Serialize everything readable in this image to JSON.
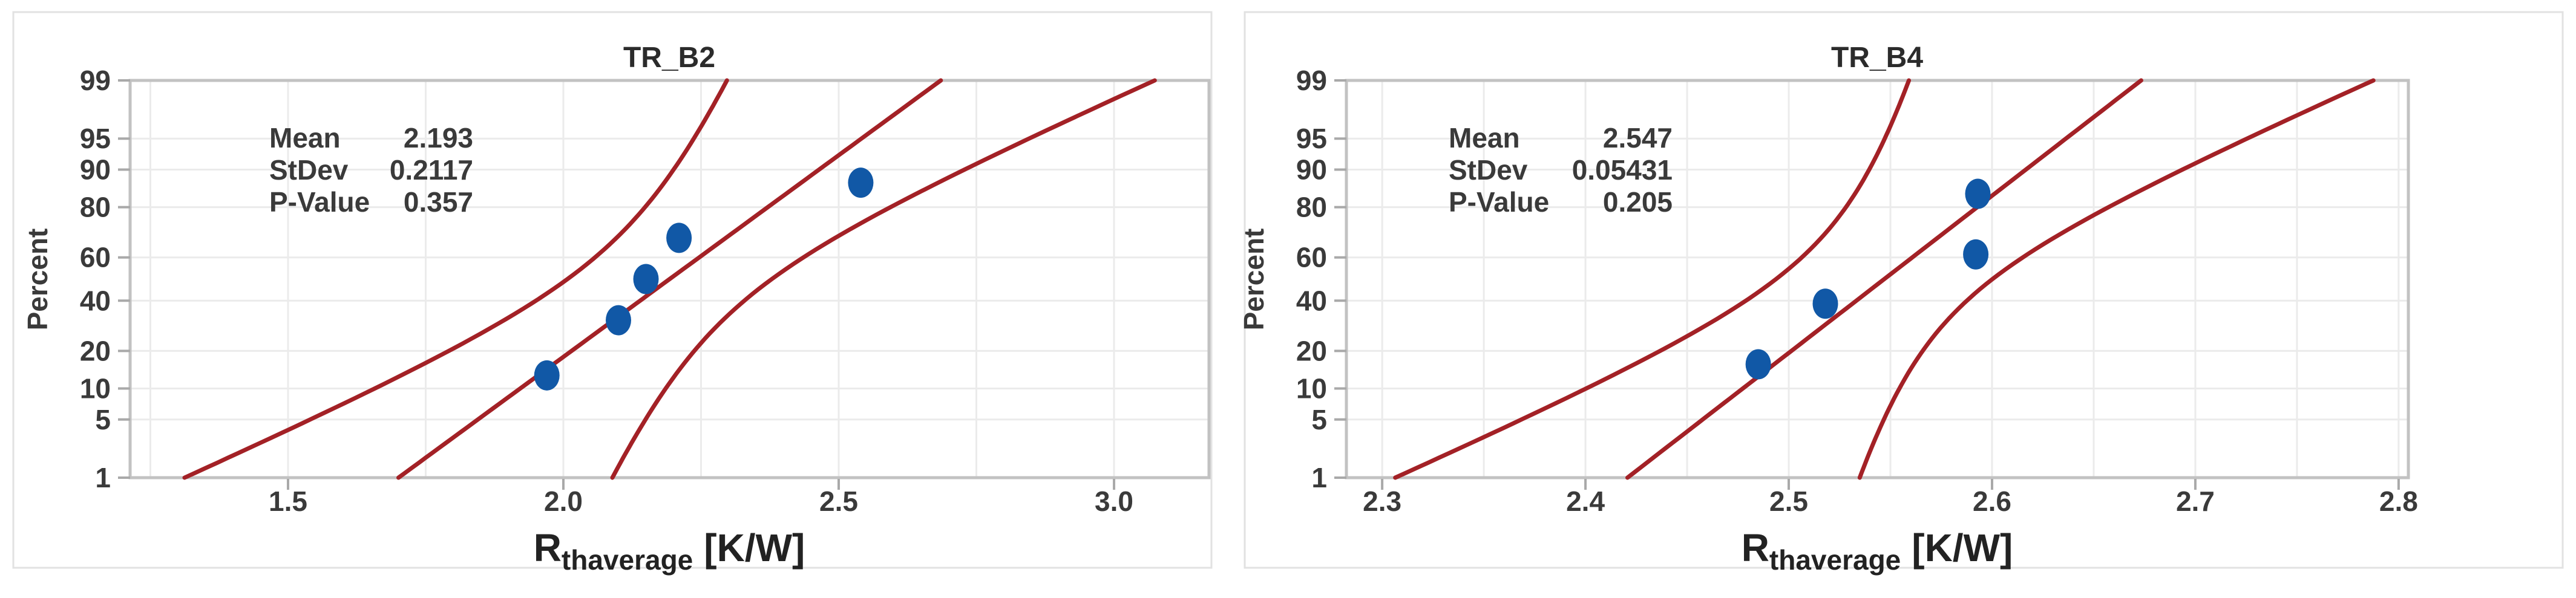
{
  "page": {
    "background": "#FFFFFF"
  },
  "colors": {
    "line_red": "#A32126",
    "point_blue": "#1158A6",
    "grid": "#EBEBEB",
    "frame": "#C2C2C2",
    "tick": "#A9A9A9",
    "text": "#3A3A3A",
    "title": "#2B2B2B",
    "card_border": "#E2E2E2",
    "background": "#FFFFFF"
  },
  "chart_data": [
    {
      "type": "scatter",
      "subtype": "normal_probability_plot",
      "title": "TR_B2",
      "ylabel": "Percent",
      "xlabel": "Rthaverage [K/W]",
      "xlabel_parts": {
        "base": "R",
        "sub": "thaverage",
        "unit": "[K/W]"
      },
      "stats": [
        [
          "Mean",
          "2.193"
        ],
        [
          "StDev",
          "0.2117"
        ],
        [
          "P-Value",
          "0.357"
        ]
      ],
      "points": {
        "x": [
          1.97,
          2.1,
          2.15,
          2.21,
          2.54
        ],
        "percent": [
          12.96,
          31.48,
          50.0,
          68.52,
          87.04
        ]
      },
      "fit": {
        "mean": 2.193,
        "stdev": 0.2117,
        "n": 5,
        "conf_level": 0.95
      },
      "x_ticks": [
        "1.5",
        "2.0",
        "2.5",
        "3.0"
      ],
      "x_tick_values": [
        1.5,
        2.0,
        2.5,
        3.0
      ],
      "x_minor_step": 0.25,
      "xlim": [
        1.2132,
        3.1725
      ],
      "y_ticks": [
        99,
        95,
        90,
        80,
        60,
        40,
        20,
        10,
        5,
        1
      ],
      "ylim": [
        1,
        99
      ],
      "grid": true,
      "legend": false
    },
    {
      "type": "scatter",
      "subtype": "normal_probability_plot",
      "title": "TR_B4",
      "ylabel": "Percent",
      "xlabel": "Rthaverage [K/W]",
      "xlabel_parts": {
        "base": "R",
        "sub": "thaverage",
        "unit": "[K/W]"
      },
      "stats": [
        [
          "Mean",
          "2.547"
        ],
        [
          "StDev",
          "0.05431"
        ],
        [
          "P-Value",
          "0.205"
        ]
      ],
      "points": {
        "x": [
          2.485,
          2.518,
          2.592,
          2.593
        ],
        "percent": [
          15.91,
          38.64,
          61.36,
          84.09
        ]
      },
      "fit": {
        "mean": 2.547,
        "stdev": 0.05431,
        "n": 4,
        "conf_level": 0.95
      },
      "x_ticks": [
        "2.3",
        "2.4",
        "2.5",
        "2.6",
        "2.7",
        "2.8"
      ],
      "x_tick_values": [
        2.3,
        2.4,
        2.5,
        2.6,
        2.7,
        2.8
      ],
      "x_minor_step": 0.05,
      "xlim": [
        2.2824,
        2.8048
      ],
      "y_ticks": [
        99,
        95,
        90,
        80,
        60,
        40,
        20,
        10,
        5,
        1
      ],
      "ylim": [
        1,
        99
      ],
      "grid": true,
      "legend": false
    }
  ]
}
